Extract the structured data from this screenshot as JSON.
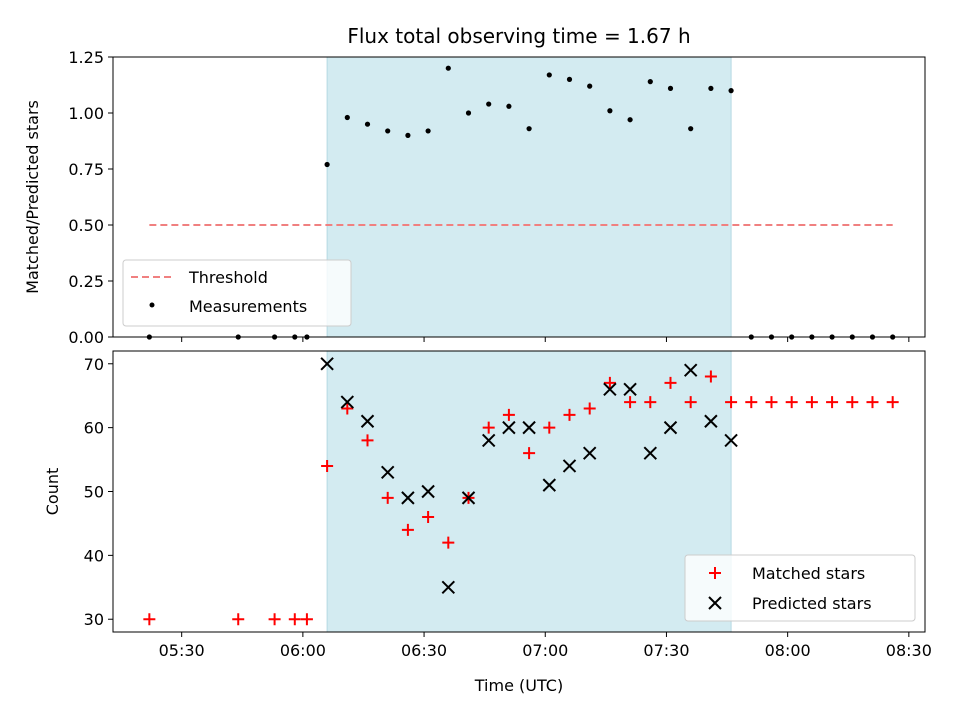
{
  "chart_data": [
    {
      "type": "scatter",
      "title": "Flux total observing time = 1.67 h",
      "ylabel": "Matched/Predicted stars",
      "xlabel": "",
      "x_unit": "time (UTC)",
      "xlim": [
        "05:13",
        "08:34"
      ],
      "ylim": [
        0,
        1.25
      ],
      "yticks": [
        0.0,
        0.25,
        0.5,
        0.75,
        1.0,
        1.25
      ],
      "ytick_labels": [
        "0.00",
        "0.25",
        "0.50",
        "0.75",
        "1.00",
        "1.25"
      ],
      "xticks": [
        "05:30",
        "06:00",
        "06:30",
        "07:00",
        "07:30",
        "08:00",
        "08:30"
      ],
      "shaded_interval": {
        "x": [
          "06:06",
          "07:46"
        ],
        "color": "#d3ebf1"
      },
      "threshold": {
        "name": "Threshold",
        "y": 0.5,
        "x": [
          "05:22",
          "08:26"
        ],
        "color": "#f08080",
        "style": "dashed"
      },
      "series": [
        {
          "name": "Measurements",
          "marker": "dot",
          "color": "#000000",
          "points": [
            [
              "05:22",
              0.0
            ],
            [
              "05:44",
              0.0
            ],
            [
              "05:53",
              0.0
            ],
            [
              "05:58",
              0.0
            ],
            [
              "06:01",
              0.0
            ],
            [
              "06:06",
              0.77
            ],
            [
              "06:11",
              0.98
            ],
            [
              "06:16",
              0.95
            ],
            [
              "06:21",
              0.92
            ],
            [
              "06:26",
              0.9
            ],
            [
              "06:31",
              0.92
            ],
            [
              "06:36",
              1.2
            ],
            [
              "06:41",
              1.0
            ],
            [
              "06:46",
              1.04
            ],
            [
              "06:51",
              1.03
            ],
            [
              "06:56",
              0.93
            ],
            [
              "07:01",
              1.17
            ],
            [
              "07:06",
              1.15
            ],
            [
              "07:11",
              1.12
            ],
            [
              "07:16",
              1.01
            ],
            [
              "07:21",
              0.97
            ],
            [
              "07:26",
              1.14
            ],
            [
              "07:31",
              1.11
            ],
            [
              "07:36",
              0.93
            ],
            [
              "07:41",
              1.11
            ],
            [
              "07:46",
              1.1
            ],
            [
              "07:51",
              0.0
            ],
            [
              "07:56",
              0.0
            ],
            [
              "08:01",
              0.0
            ],
            [
              "08:06",
              0.0
            ],
            [
              "08:11",
              0.0
            ],
            [
              "08:16",
              0.0
            ],
            [
              "08:21",
              0.0
            ],
            [
              "08:26",
              0.0
            ]
          ]
        }
      ],
      "legend": {
        "placement": "lower-left",
        "entries": [
          "Threshold",
          "Measurements"
        ]
      }
    },
    {
      "type": "scatter",
      "title": "",
      "ylabel": "Count",
      "xlabel": "Time (UTC)",
      "xlim": [
        "05:13",
        "08:34"
      ],
      "ylim": [
        28,
        72
      ],
      "yticks": [
        30,
        40,
        50,
        60,
        70
      ],
      "ytick_labels": [
        "30",
        "40",
        "50",
        "60",
        "70"
      ],
      "xticks": [
        "05:30",
        "06:00",
        "06:30",
        "07:00",
        "07:30",
        "08:00",
        "08:30"
      ],
      "shaded_interval": {
        "x": [
          "06:06",
          "07:46"
        ],
        "color": "#d3ebf1"
      },
      "series": [
        {
          "name": "Matched stars",
          "marker": "plus",
          "color": "#ff0000",
          "points": [
            [
              "05:22",
              30
            ],
            [
              "05:44",
              30
            ],
            [
              "05:53",
              30
            ],
            [
              "05:58",
              30
            ],
            [
              "06:01",
              30
            ],
            [
              "06:06",
              54
            ],
            [
              "06:11",
              63
            ],
            [
              "06:16",
              58
            ],
            [
              "06:21",
              49
            ],
            [
              "06:26",
              44
            ],
            [
              "06:31",
              46
            ],
            [
              "06:36",
              42
            ],
            [
              "06:41",
              49
            ],
            [
              "06:46",
              60
            ],
            [
              "06:51",
              62
            ],
            [
              "06:56",
              56
            ],
            [
              "07:01",
              60
            ],
            [
              "07:06",
              62
            ],
            [
              "07:11",
              63
            ],
            [
              "07:16",
              67
            ],
            [
              "07:21",
              64
            ],
            [
              "07:26",
              64
            ],
            [
              "07:31",
              67
            ],
            [
              "07:36",
              64
            ],
            [
              "07:41",
              68
            ],
            [
              "07:46",
              64
            ],
            [
              "07:51",
              64
            ],
            [
              "07:56",
              64
            ],
            [
              "08:01",
              64
            ],
            [
              "08:06",
              64
            ],
            [
              "08:11",
              64
            ],
            [
              "08:16",
              64
            ],
            [
              "08:21",
              64
            ],
            [
              "08:26",
              64
            ]
          ]
        },
        {
          "name": "Predicted stars",
          "marker": "x",
          "color": "#000000",
          "points": [
            [
              "06:06",
              70
            ],
            [
              "06:11",
              64
            ],
            [
              "06:16",
              61
            ],
            [
              "06:21",
              53
            ],
            [
              "06:26",
              49
            ],
            [
              "06:31",
              50
            ],
            [
              "06:36",
              35
            ],
            [
              "06:41",
              49
            ],
            [
              "06:46",
              58
            ],
            [
              "06:51",
              60
            ],
            [
              "06:56",
              60
            ],
            [
              "07:01",
              51
            ],
            [
              "07:06",
              54
            ],
            [
              "07:11",
              56
            ],
            [
              "07:16",
              66
            ],
            [
              "07:21",
              66
            ],
            [
              "07:26",
              56
            ],
            [
              "07:31",
              60
            ],
            [
              "07:36",
              69
            ],
            [
              "07:41",
              61
            ],
            [
              "07:46",
              58
            ]
          ]
        }
      ],
      "legend": {
        "placement": "lower-right",
        "entries": [
          "Matched stars",
          "Predicted stars"
        ]
      }
    }
  ]
}
